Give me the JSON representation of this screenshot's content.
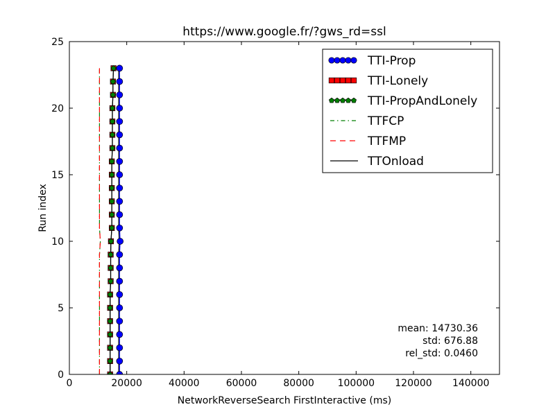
{
  "chart_data": {
    "type": "line",
    "title": "https://www.google.fr/?gws_rd=ssl",
    "xlabel": "NetworkReverseSearch FirstInteractive (ms)",
    "ylabel": "Run index",
    "xlim": [
      0,
      150000
    ],
    "ylim": [
      0,
      25
    ],
    "x_ticks": [
      "0",
      "20000",
      "40000",
      "60000",
      "80000",
      "100000",
      "120000",
      "140000"
    ],
    "y_ticks": [
      "0",
      "5",
      "10",
      "15",
      "20",
      "25"
    ],
    "grid": false,
    "legend_position": "top-right",
    "y": [
      0,
      1,
      2,
      3,
      4,
      5,
      6,
      7,
      8,
      9,
      10,
      11,
      12,
      13,
      14,
      15,
      16,
      17,
      18,
      19,
      20,
      21,
      22,
      23
    ],
    "series": [
      {
        "name": "TTI-Prop",
        "style": "line-circle-markers",
        "color": "#0000ff",
        "x": [
          17500,
          17500,
          17500,
          17500,
          17500,
          17500,
          17500,
          17500,
          17500,
          17500,
          17700,
          17500,
          17500,
          17500,
          17500,
          17500,
          17500,
          17500,
          17500,
          17500,
          17500,
          17500,
          17500,
          17500
        ]
      },
      {
        "name": "TTI-Lonely",
        "style": "line-square-markers",
        "color": "#ff0000",
        "x": [
          14200,
          14200,
          14200,
          14200,
          14200,
          14200,
          14200,
          14400,
          14400,
          14400,
          14500,
          14800,
          14800,
          14800,
          14800,
          14800,
          14800,
          15000,
          15000,
          15000,
          15000,
          15200,
          15200,
          15400
        ]
      },
      {
        "name": "TTI-PropAndLonely",
        "style": "line-pentagon-markers",
        "color": "#007f00",
        "x": [
          14200,
          14200,
          14200,
          14200,
          14200,
          14200,
          14200,
          14400,
          14400,
          14400,
          14500,
          14800,
          14800,
          14800,
          14800,
          14800,
          14800,
          15000,
          15000,
          15000,
          15000,
          15200,
          15200,
          15400
        ]
      },
      {
        "name": "TTFCP",
        "style": "dash-dot",
        "color": "#007f00",
        "x": [
          10500,
          10500,
          10500,
          10500,
          10500,
          10500,
          10500,
          10500,
          10500,
          10500,
          10800,
          10500,
          10500,
          10500,
          10500,
          10500,
          10500,
          10500,
          10500,
          10500,
          10500,
          10500,
          10500,
          10500
        ]
      },
      {
        "name": "TTFMP",
        "style": "dashed",
        "color": "#ff0000",
        "x": [
          10500,
          10500,
          10500,
          10500,
          10500,
          10500,
          10500,
          10500,
          10500,
          10500,
          10800,
          10500,
          10500,
          10500,
          10500,
          10500,
          10500,
          10500,
          10500,
          10500,
          10500,
          10500,
          10500,
          10500
        ]
      },
      {
        "name": "TTOnload",
        "style": "solid",
        "color": "#000000",
        "x": [
          17200,
          17200,
          17200,
          17200,
          17200,
          17200,
          17200,
          17200,
          17200,
          17200,
          17400,
          17200,
          17200,
          17200,
          17200,
          17200,
          17200,
          17200,
          17200,
          17200,
          17200,
          17200,
          17200,
          17200
        ]
      }
    ],
    "annotations": [
      "mean: 14730.36",
      "std: 676.88",
      "rel_std: 0.0460"
    ]
  }
}
